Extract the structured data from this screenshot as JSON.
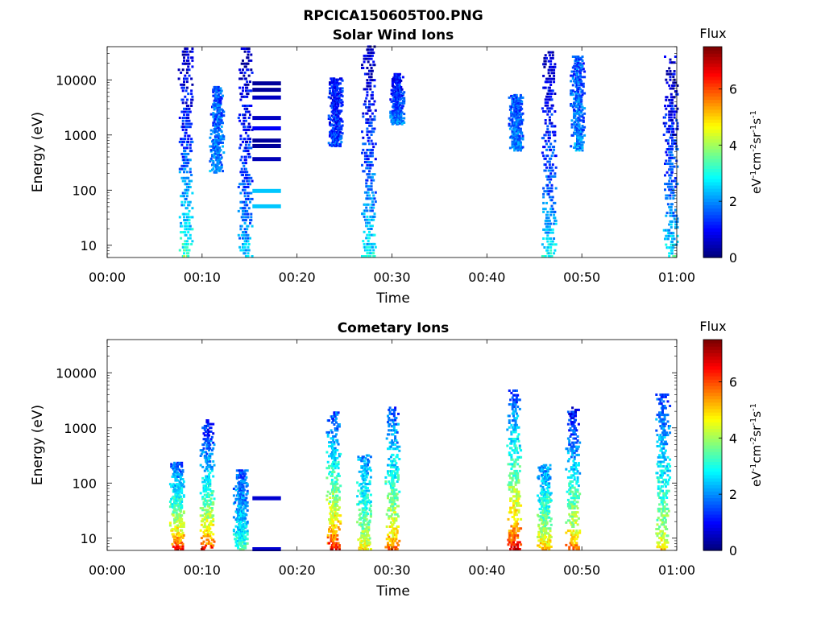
{
  "figure": {
    "title": "RPCICA150605T00.PNG",
    "panels": [
      {
        "title": "Solar Wind Ions",
        "xlabel": "Time",
        "ylabel": "Energy (eV)",
        "colorbar_title": "Flux",
        "colorbar_label": "eV-1cm-2sr-1s-1"
      },
      {
        "title": "Cometary Ions",
        "xlabel": "Time",
        "ylabel": "Energy (eV)",
        "colorbar_title": "Flux",
        "colorbar_label": "eV-1cm-2sr-1s-1"
      }
    ]
  },
  "chart_data": [
    {
      "type": "heatmap",
      "title": "Solar Wind Ions",
      "xlabel": "Time",
      "ylabel": "Energy (eV)",
      "x_ticks": [
        "00:00",
        "00:10",
        "00:20",
        "00:30",
        "00:40",
        "00:50",
        "01:00"
      ],
      "x_range_minutes": [
        0,
        60
      ],
      "y_scale": "log",
      "y_range": [
        6,
        40000
      ],
      "y_ticks": [
        10,
        100,
        1000,
        10000
      ],
      "y_tick_labels": [
        "10",
        "100",
        "1000",
        "10000"
      ],
      "colorbar": {
        "title": "Flux",
        "label": "eV-1cm-2sr-1s-1",
        "range": [
          0,
          7.5
        ],
        "ticks": [
          0,
          2,
          4,
          6
        ],
        "colormap": "jet"
      },
      "bursts": [
        {
          "t_minutes": 8.2,
          "energy_min": 6,
          "energy_max": 35000,
          "low_energy_flux": 3.5,
          "high_energy_flux": 0.5
        },
        {
          "t_minutes": 11.5,
          "energy_min": 200,
          "energy_max": 7000,
          "low_energy_flux": 2.0,
          "high_energy_flux": 1.5
        },
        {
          "t_minutes": 14.5,
          "energy_min": 6,
          "energy_max": 35000,
          "low_energy_flux": 2.5,
          "high_energy_flux": 0.5
        },
        {
          "t_minutes": 24.0,
          "energy_min": 600,
          "energy_max": 10000,
          "low_energy_flux": 1.5,
          "high_energy_flux": 1.0
        },
        {
          "t_minutes": 27.5,
          "energy_min": 6,
          "energy_max": 38000,
          "low_energy_flux": 3.0,
          "high_energy_flux": 0.5
        },
        {
          "t_minutes": 30.5,
          "energy_min": 1500,
          "energy_max": 12000,
          "low_energy_flux": 2.0,
          "high_energy_flux": 1.0
        },
        {
          "t_minutes": 43.0,
          "energy_min": 500,
          "energy_max": 5000,
          "low_energy_flux": 2.0,
          "high_energy_flux": 1.5
        },
        {
          "t_minutes": 46.5,
          "energy_min": 6,
          "energy_max": 30000,
          "low_energy_flux": 3.0,
          "high_energy_flux": 0.5
        },
        {
          "t_minutes": 49.5,
          "energy_min": 500,
          "energy_max": 25000,
          "low_energy_flux": 2.0,
          "high_energy_flux": 1.5
        },
        {
          "t_minutes": 59.3,
          "energy_min": 6,
          "energy_max": 25000,
          "low_energy_flux": 3.0,
          "high_energy_flux": 0.5
        }
      ],
      "bands": [
        {
          "t_start": 15.3,
          "t_end": 18.3,
          "energy": 8500,
          "flux": 0.2
        },
        {
          "t_start": 15.3,
          "t_end": 18.3,
          "energy": 6500,
          "flux": 0.2
        },
        {
          "t_start": 15.3,
          "t_end": 18.3,
          "energy": 4700,
          "flux": 0.5
        },
        {
          "t_start": 15.3,
          "t_end": 18.3,
          "energy": 2000,
          "flux": 0.5
        },
        {
          "t_start": 15.3,
          "t_end": 18.3,
          "energy": 1300,
          "flux": 0.9
        },
        {
          "t_start": 15.3,
          "t_end": 18.3,
          "energy": 780,
          "flux": 0.2
        },
        {
          "t_start": 15.3,
          "t_end": 18.3,
          "energy": 620,
          "flux": 0.2
        },
        {
          "t_start": 15.3,
          "t_end": 18.3,
          "energy": 360,
          "flux": 0.4
        },
        {
          "t_start": 15.3,
          "t_end": 18.3,
          "energy": 95,
          "flux": 2.4
        },
        {
          "t_start": 15.3,
          "t_end": 18.3,
          "energy": 50,
          "flux": 2.4
        }
      ]
    },
    {
      "type": "heatmap",
      "title": "Cometary Ions",
      "xlabel": "Time",
      "ylabel": "Energy (eV)",
      "x_ticks": [
        "00:00",
        "00:10",
        "00:20",
        "00:30",
        "00:40",
        "00:50",
        "01:00"
      ],
      "x_range_minutes": [
        0,
        60
      ],
      "y_scale": "log",
      "y_range": [
        6,
        40000
      ],
      "y_ticks": [
        10,
        100,
        1000,
        10000
      ],
      "y_tick_labels": [
        "10",
        "100",
        "1000",
        "10000"
      ],
      "colorbar": {
        "title": "Flux",
        "label": "eV-1cm-2sr-1s-1",
        "range": [
          0,
          7.5
        ],
        "ticks": [
          0,
          2,
          4,
          6
        ],
        "colormap": "jet"
      },
      "bursts": [
        {
          "t_minutes": 7.3,
          "energy_min": 6,
          "energy_max": 220,
          "low_energy_flux": 6.8,
          "high_energy_flux": 1.5
        },
        {
          "t_minutes": 10.5,
          "energy_min": 6,
          "energy_max": 1300,
          "low_energy_flux": 6.5,
          "high_energy_flux": 1.0
        },
        {
          "t_minutes": 14.0,
          "energy_min": 6,
          "energy_max": 160,
          "low_energy_flux": 3.5,
          "high_energy_flux": 1.5
        },
        {
          "t_minutes": 23.8,
          "energy_min": 6,
          "energy_max": 1800,
          "low_energy_flux": 6.8,
          "high_energy_flux": 1.5
        },
        {
          "t_minutes": 27.0,
          "energy_min": 6,
          "energy_max": 300,
          "low_energy_flux": 5.0,
          "high_energy_flux": 2.0
        },
        {
          "t_minutes": 30.0,
          "energy_min": 6,
          "energy_max": 2200,
          "low_energy_flux": 6.0,
          "high_energy_flux": 1.5
        },
        {
          "t_minutes": 42.8,
          "energy_min": 6,
          "energy_max": 4500,
          "low_energy_flux": 7.0,
          "high_energy_flux": 1.5
        },
        {
          "t_minutes": 46.0,
          "energy_min": 6,
          "energy_max": 200,
          "low_energy_flux": 5.5,
          "high_energy_flux": 2.0
        },
        {
          "t_minutes": 49.0,
          "energy_min": 6,
          "energy_max": 2200,
          "low_energy_flux": 6.0,
          "high_energy_flux": 1.0
        },
        {
          "t_minutes": 58.5,
          "energy_min": 6,
          "energy_max": 3800,
          "low_energy_flux": 5.0,
          "high_energy_flux": 1.5
        }
      ],
      "bands": [
        {
          "t_start": 15.3,
          "t_end": 18.3,
          "energy": 52,
          "flux": 0.6
        },
        {
          "t_start": 15.3,
          "t_end": 18.3,
          "energy": 6.2,
          "flux": 0.6
        }
      ]
    }
  ]
}
